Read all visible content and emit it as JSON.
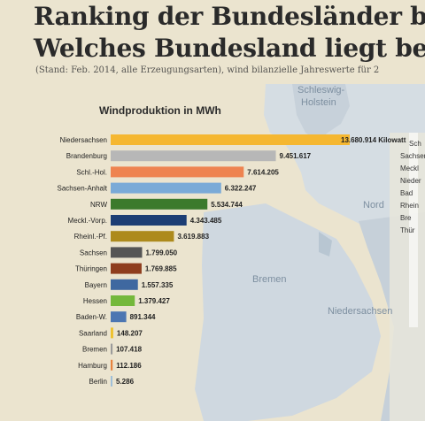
{
  "header": {
    "title_line1": "Ranking der Bundesländer beim",
    "title_line2": "Welches Bundesland liegt bei  W",
    "subtitle": "(Stand: Feb. 2014, alle Erzeugungsarten), wind bilanzielle Jahreswerte für 2"
  },
  "map_labels": {
    "schleswig": "Schleswig-",
    "holstein": "Holstein",
    "bremen": "Bremen",
    "niedersachsen_map": "Niedersachsen",
    "nord": "Nord"
  },
  "side_labels": [
    "Sch",
    "Sachsen",
    "Meckl",
    "Nieder",
    "Bad",
    "Rhein",
    "Bre",
    "Thür"
  ],
  "chart_data": {
    "type": "bar",
    "orientation": "horizontal",
    "title": "Windproduktion in MWh",
    "categories": [
      "Niedersachsen",
      "Brandenburg",
      "Schl.-Hol.",
      "Sachsen-Anhalt",
      "NRW",
      "Meckl.-Vorp.",
      "Rheinl.-Pf.",
      "Sachsen",
      "Thüringen",
      "Bayern",
      "Hessen",
      "Baden-W.",
      "Saarland",
      "Bremen",
      "Hamburg",
      "Berlin"
    ],
    "values": [
      13680914,
      9451617,
      7614205,
      6322247,
      5534744,
      4343485,
      3619883,
      1799050,
      1769885,
      1557335,
      1379427,
      891344,
      148207,
      107418,
      112186,
      5286
    ],
    "value_labels": [
      "13.680.914 Kilowatt",
      "9.451.617",
      "7.614.205",
      "6.322.247",
      "5.534.744",
      "4.343.485",
      "3.619.883",
      "1.799.050",
      "1.769.885",
      "1.557.335",
      "1.379.427",
      "891.344",
      "148.207",
      "107.418",
      "112.186",
      "5.286"
    ],
    "colors": [
      "#f5b731",
      "#b7b7b7",
      "#ee8350",
      "#7aaad7",
      "#3c7a2c",
      "#1c3d74",
      "#ad8a1c",
      "#555555",
      "#8e3d1e",
      "#3f68a0",
      "#74b83b",
      "#4d76b2",
      "#efc12f",
      "#9b9b9b",
      "#e7833e",
      "#9fbfd9"
    ],
    "xlim": [
      0,
      13680914
    ],
    "grid": false,
    "legend": "none"
  }
}
